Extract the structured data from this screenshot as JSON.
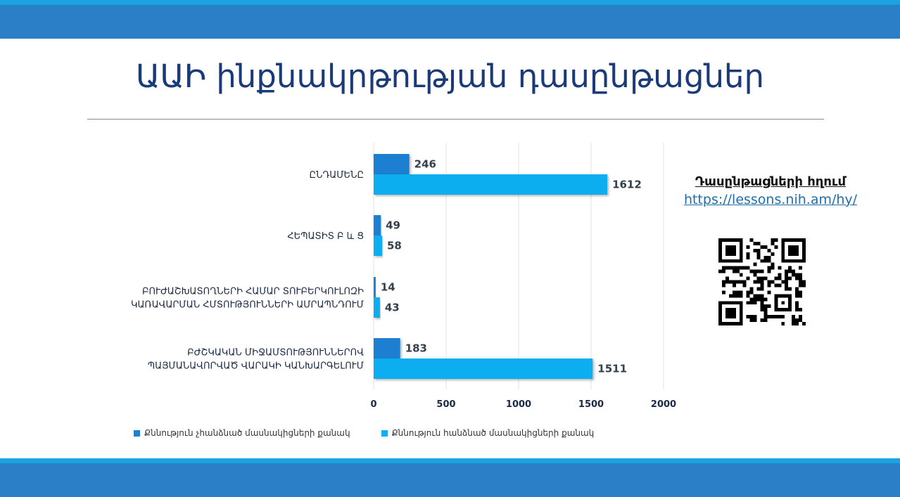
{
  "slide": {
    "title": "ԱԱԻ ինքնակրթության դասընթացներ"
  },
  "link_panel": {
    "title": "Դասընթացների հղում",
    "url": "https://lessons.nih.am/hy/"
  },
  "qr_code": {
    "icon": "qr-code-icon"
  },
  "colors": {
    "band": "#2a7fc6",
    "band_line": "#1aa3e0",
    "series_fail": "#1f7fd1",
    "series_pass": "#11aef0"
  },
  "chart_data": {
    "type": "bar",
    "orientation": "horizontal",
    "categories": [
      [
        "ԸՆԴԱՄԵՆԸ"
      ],
      [
        "ՀԵՊԱՏԻՏ Բ և Ց"
      ],
      [
        "ԲՈՒԺԱՇԽԱՏՈՂՆԵՐԻ ՀԱՄԱՐ ՏՈՒԲԵՐԿՈՒԼՈԶԻ",
        "ԿԱՌԱՎԱՐՄԱՆ ՀՄՏՈՒԹՅՈՒՆՆԵՐԻ ԱՄՐԱՊՆԴՈՒՄ"
      ],
      [
        "ԲԺՇԿԱԿԱՆ ՄԻՋԱՄՏՈՒԹՅՈՒՆՆԵՐՈՎ",
        "ՊԱՅՄԱՆԱՎՈՐՎԱԾ ՎԱՐԱԿԻ ԿԱՆԽԱՐԳԵԼՈՒՄ"
      ]
    ],
    "series": [
      {
        "name": "Քննություն չհանձնած մասնակիցների քանակ",
        "values": [
          246,
          49,
          14,
          183
        ],
        "color": "#1f7fd1"
      },
      {
        "name": "Քննություն հանձնած մասնակիցների քանակ",
        "values": [
          1612,
          58,
          43,
          1511
        ],
        "color": "#11aef0"
      }
    ],
    "xlim": [
      0,
      2000
    ],
    "xticks": [
      0,
      500,
      1000,
      1500,
      2000
    ],
    "grid": true,
    "legend": "bottom"
  }
}
